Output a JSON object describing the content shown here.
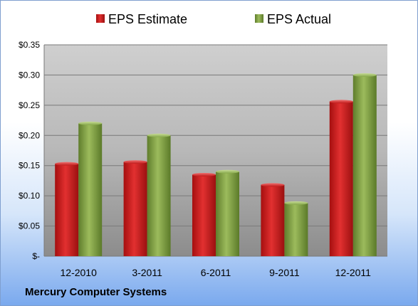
{
  "footer": {
    "company": "Mercury Computer Systems"
  },
  "colors": {
    "estimate": "#cc1f1f",
    "actual": "#86a84a",
    "plot_top": "#c8c8c8",
    "plot_bottom": "#8a8a8a"
  },
  "chart_data": {
    "type": "bar",
    "title": "",
    "xlabel": "",
    "ylabel": "",
    "categories": [
      "12-2010",
      "3-2011",
      "6-2011",
      "9-2011",
      "12-2011"
    ],
    "series": [
      {
        "name": "EPS Estimate",
        "values": [
          0.153,
          0.156,
          0.135,
          0.118,
          0.256
        ]
      },
      {
        "name": "EPS Actual",
        "values": [
          0.22,
          0.2,
          0.14,
          0.088,
          0.3
        ]
      }
    ],
    "ylim": [
      0,
      0.35
    ],
    "yticks": [
      0,
      0.05,
      0.1,
      0.15,
      0.2,
      0.25,
      0.3,
      0.35
    ],
    "ytick_labels": [
      "$-",
      "$0.05",
      "$0.10",
      "$0.15",
      "$0.20",
      "$0.25",
      "$0.30",
      "$0.35"
    ],
    "grid": true,
    "legend_position": "top"
  }
}
